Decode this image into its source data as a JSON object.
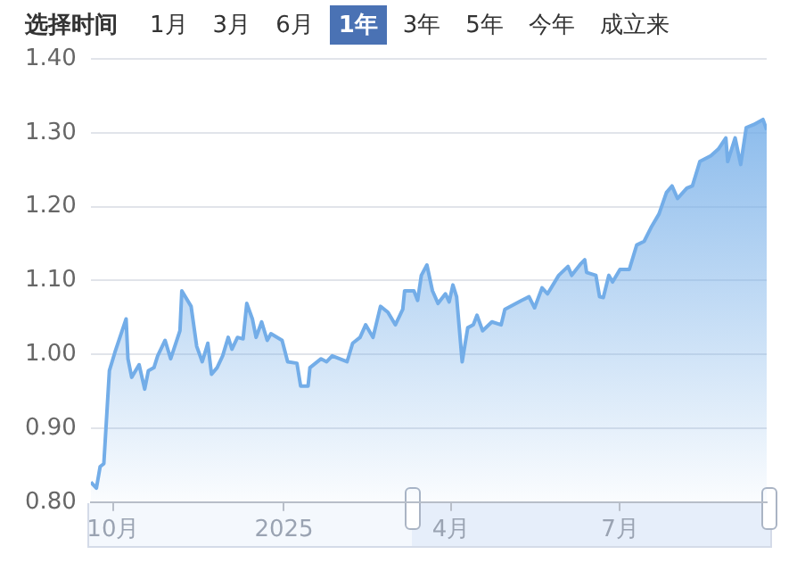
{
  "chart_data": {
    "type": "area",
    "annotations": [
      "选择时间",
      "1月",
      "3月",
      "6月",
      "1年",
      "3年",
      "5年",
      "今年",
      "成立来"
    ],
    "x": [
      "2024-09-19",
      "2024-09-22",
      "2024-09-24",
      "2024-09-26",
      "2024-09-29",
      "2024-10-02",
      "2024-10-08",
      "2024-10-09",
      "2024-10-11",
      "2024-10-15",
      "2024-10-18",
      "2024-10-20",
      "2024-10-23",
      "2024-10-25",
      "2024-10-29",
      "2024-11-01",
      "2024-11-06",
      "2024-11-07",
      "2024-11-12",
      "2024-11-15",
      "2024-11-18",
      "2024-11-21",
      "2024-11-23",
      "2024-11-26",
      "2024-11-29",
      "2024-12-02",
      "2024-12-04",
      "2024-12-07",
      "2024-12-10",
      "2024-12-12",
      "2024-12-15",
      "2024-12-17",
      "2024-12-20",
      "2024-12-23",
      "2024-12-25",
      "2024-12-31",
      "2025-01-03",
      "2025-01-08",
      "2025-01-10",
      "2025-01-14",
      "2025-01-15",
      "2025-01-21",
      "2025-01-24",
      "2025-01-27",
      "2025-02-04",
      "2025-02-07",
      "2025-02-11",
      "2025-02-14",
      "2025-02-18",
      "2025-02-22",
      "2025-02-26",
      "2025-03-02",
      "2025-03-06",
      "2025-03-07",
      "2025-03-12",
      "2025-03-14",
      "2025-03-16",
      "2025-03-19",
      "2025-03-22",
      "2025-03-25",
      "2025-03-29",
      "2025-03-31",
      "2025-04-02",
      "2025-04-04",
      "2025-04-07",
      "2025-04-10",
      "2025-04-13",
      "2025-04-15",
      "2025-04-18",
      "2025-04-23",
      "2025-04-28",
      "2025-04-30",
      "2025-05-09",
      "2025-05-13",
      "2025-05-16",
      "2025-05-20",
      "2025-05-23",
      "2025-05-29",
      "2025-06-03",
      "2025-06-05",
      "2025-06-10",
      "2025-06-12",
      "2025-06-13",
      "2025-06-18",
      "2025-06-20",
      "2025-06-22",
      "2025-06-25",
      "2025-06-27",
      "2025-07-01",
      "2025-07-06",
      "2025-07-10",
      "2025-07-14",
      "2025-07-18",
      "2025-07-22",
      "2025-07-26",
      "2025-07-29",
      "2025-08-01",
      "2025-08-06",
      "2025-08-09",
      "2025-08-13",
      "2025-08-19",
      "2025-08-23",
      "2025-08-27",
      "2025-08-28",
      "2025-09-01",
      "2025-09-04",
      "2025-09-07",
      "2025-09-11",
      "2025-09-16",
      "2025-09-18"
    ],
    "series": [
      {
        "color": "#73ade8",
        "values": [
          0.827,
          0.819,
          0.848,
          0.852,
          0.978,
          1.003,
          1.048,
          0.994,
          0.969,
          0.986,
          0.953,
          0.978,
          0.982,
          0.998,
          1.019,
          0.994,
          1.032,
          1.086,
          1.065,
          1.011,
          0.99,
          1.015,
          0.973,
          0.982,
          0.998,
          1.023,
          1.007,
          1.023,
          1.021,
          1.069,
          1.048,
          1.023,
          1.044,
          1.019,
          1.028,
          1.019,
          0.99,
          0.988,
          0.957,
          0.957,
          0.982,
          0.994,
          0.99,
          0.998,
          0.99,
          1.015,
          1.023,
          1.04,
          1.023,
          1.065,
          1.057,
          1.04,
          1.061,
          1.086,
          1.086,
          1.073,
          1.107,
          1.121,
          1.086,
          1.069,
          1.082,
          1.071,
          1.094,
          1.078,
          0.99,
          1.036,
          1.04,
          1.053,
          1.032,
          1.044,
          1.04,
          1.061,
          1.073,
          1.078,
          1.063,
          1.09,
          1.082,
          1.107,
          1.119,
          1.107,
          1.123,
          1.128,
          1.111,
          1.107,
          1.078,
          1.077,
          1.107,
          1.098,
          1.115,
          1.115,
          1.148,
          1.153,
          1.173,
          1.19,
          1.219,
          1.228,
          1.211,
          1.225,
          1.228,
          1.261,
          1.269,
          1.278,
          1.293,
          1.261,
          1.293,
          1.257,
          1.307,
          1.311,
          1.318,
          1.304
        ]
      }
    ],
    "xlim": [
      "2024-09-19",
      "2025-09-18"
    ],
    "xticks": [
      {
        "value": "2024-10-01",
        "label": "10月"
      },
      {
        "value": "2025-01-01",
        "label": "2025"
      },
      {
        "value": "2025-04-01",
        "label": "4月"
      },
      {
        "value": "2025-07-01",
        "label": "7月"
      }
    ],
    "ylim": [
      0.8,
      1.4
    ],
    "yticks": [
      {
        "value": 0.8,
        "label": "0.80"
      },
      {
        "value": 0.9,
        "label": "0.90"
      },
      {
        "value": 1.0,
        "label": "1.00"
      },
      {
        "value": 1.1,
        "label": "1.10"
      },
      {
        "value": 1.2,
        "label": "1.20"
      },
      {
        "value": 1.3,
        "label": "1.30"
      },
      {
        "value": 1.4,
        "label": "1.40"
      }
    ],
    "grid": "y",
    "legend": false,
    "marker": "none",
    "line_style": "solid"
  }
}
